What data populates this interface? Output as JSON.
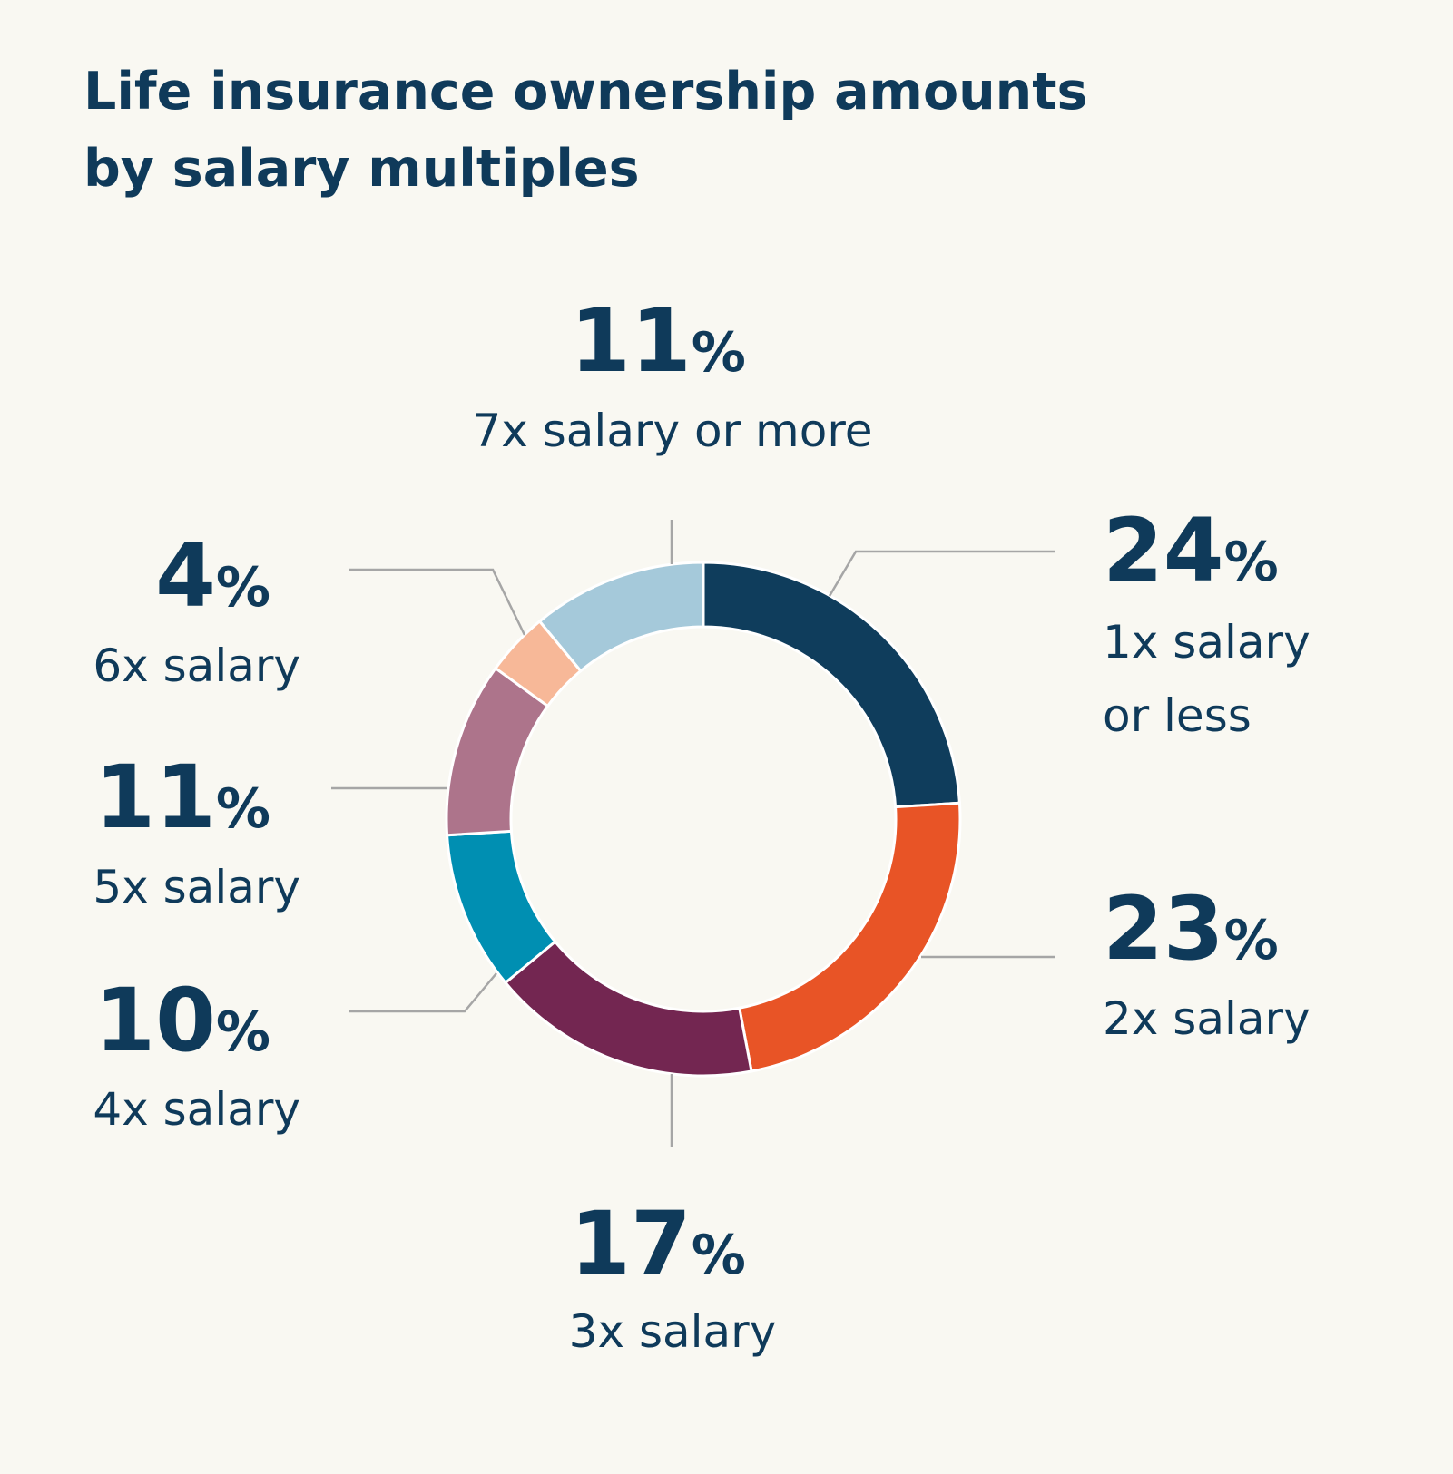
{
  "chart_data": {
    "type": "pie",
    "variant": "donut",
    "title_lines": [
      "Life insurance ownership amounts",
      "by salary multiples"
    ],
    "start": "top",
    "direction": "clockwise",
    "slices": [
      {
        "label": "1x salary or less",
        "label_lines": [
          "1x salary",
          "or less"
        ],
        "value": 24,
        "value_label": "24",
        "color": "#0f3d5c"
      },
      {
        "label": "2x salary",
        "label_lines": [
          "2x salary"
        ],
        "value": 23,
        "value_label": "23",
        "color": "#e85426"
      },
      {
        "label": "3x salary",
        "label_lines": [
          "3x salary"
        ],
        "value": 17,
        "value_label": "17",
        "color": "#732651"
      },
      {
        "label": "4x salary",
        "label_lines": [
          "4x salary"
        ],
        "value": 10,
        "value_label": "10",
        "color": "#008fb2"
      },
      {
        "label": "5x salary",
        "label_lines": [
          "5x salary"
        ],
        "value": 11,
        "value_label": "11",
        "color": "#ad748b"
      },
      {
        "label": "6x salary",
        "label_lines": [
          "6x salary"
        ],
        "value": 4,
        "value_label": "4",
        "color": "#f7b898"
      },
      {
        "label": "7x salary or more",
        "label_lines": [
          "7x salary or more"
        ],
        "value": 11,
        "value_label": "11",
        "color": "#a5c9da"
      }
    ],
    "percent_sign": "%"
  }
}
